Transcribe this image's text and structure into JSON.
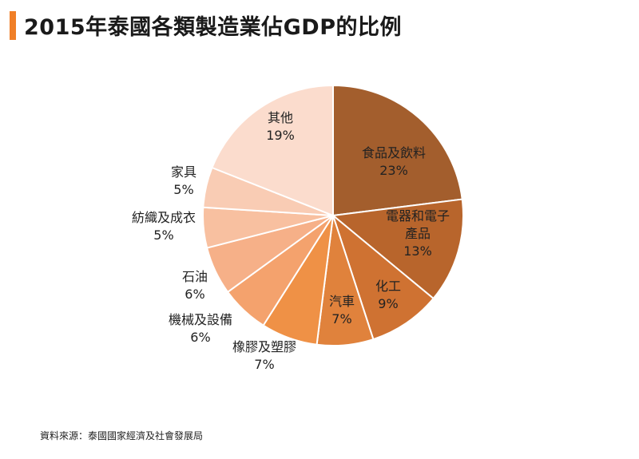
{
  "title": "2015年泰國各類製造業佔GDP的比例",
  "source": "資料來源：泰國國家經濟及社會發展局",
  "accent_color": "#f07f27",
  "chart_data": {
    "type": "pie",
    "title": "2015年泰國各類製造業佔GDP的比例",
    "unit": "%",
    "start_angle_deg": 0,
    "direction": "clockwise",
    "legend": "none",
    "slices": [
      {
        "label": "食品及飲料",
        "value": 23,
        "display": "23%",
        "color": "#a35e2d"
      },
      {
        "label": "電器和電子產品",
        "value": 13,
        "display": "13%",
        "color": "#b8652c"
      },
      {
        "label": "化工",
        "value": 9,
        "display": "9%",
        "color": "#cf7232"
      },
      {
        "label": "汽車",
        "value": 7,
        "display": "7%",
        "color": "#e0823c"
      },
      {
        "label": "橡膠及塑膠",
        "value": 7,
        "display": "7%",
        "color": "#ef9146"
      },
      {
        "label": "機械及設備",
        "value": 6,
        "display": "6%",
        "color": "#f4a26d"
      },
      {
        "label": "石油",
        "value": 6,
        "display": "6%",
        "color": "#f6b088"
      },
      {
        "label": "紡織及成衣",
        "value": 5,
        "display": "5%",
        "color": "#f8c0a0"
      },
      {
        "label": "家具",
        "value": 5,
        "display": "5%",
        "color": "#f9ccb4"
      },
      {
        "label": "其他",
        "value": 19,
        "display": "19%",
        "color": "#fbdccd"
      }
    ]
  }
}
